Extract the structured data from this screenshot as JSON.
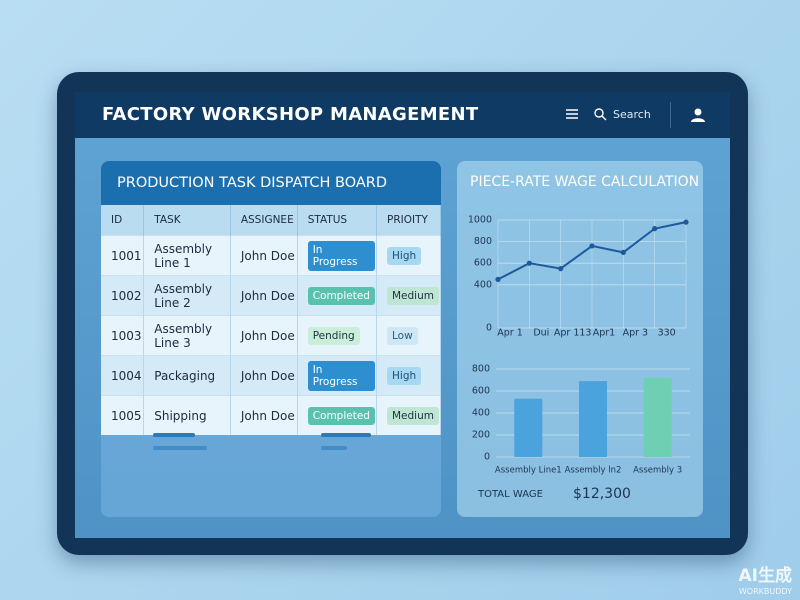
{
  "header": {
    "title": "FACTORY WORKSHOP MANAGEMENT",
    "search": "Search"
  },
  "table": {
    "title": "PRODUCTION TASK DISPATCH BOARD",
    "columns": [
      "ID",
      "TASK",
      "ASSIGNEE",
      "STATUS",
      "PRIOITY"
    ],
    "rows": [
      [
        "1001",
        "Assembly Line 1",
        "John Doe",
        "In Progress",
        "High"
      ],
      [
        "1002",
        "Assembly Line 2",
        "John Doe",
        "Completed",
        "Medium"
      ],
      [
        "1003",
        "Assembly Line 3",
        "John Doe",
        "Pending",
        "Low"
      ],
      [
        "1004",
        "Packaging",
        "John Doe",
        "In Progress",
        "High"
      ],
      [
        "1005",
        "Shipping",
        "John Doe",
        "Completed",
        "Medium"
      ]
    ]
  },
  "wage_panel": {
    "title": "PIECE-RATE WAGE CALCULATION",
    "total_label": "TOTAL WAGE",
    "total_value": "$12,300"
  },
  "chart_data": [
    {
      "type": "line",
      "categories": [
        "Apr 1",
        "Dui",
        "Apr 113",
        "Apr1",
        "Apr 3",
        "330",
        null
      ],
      "values": [
        450,
        600,
        550,
        760,
        700,
        920,
        980
      ],
      "color": "#1d5a9c",
      "ylim": [
        0,
        1000
      ],
      "yticks": [
        0,
        400,
        600,
        800,
        1000
      ],
      "grid": true
    },
    {
      "type": "bar",
      "categories": [
        "Assembly Line1",
        "Assembly ln2",
        "Assembly 3"
      ],
      "values": [
        530,
        690,
        720
      ],
      "colors": [
        "#4aa3dc",
        "#4aa3dc",
        "#6fcfb2"
      ],
      "ylim": [
        0,
        800
      ],
      "yticks": [
        0,
        200,
        400,
        600,
        800
      ],
      "grid": true
    }
  ],
  "watermark": {
    "main": "AI生成",
    "sub": "WORKBUDDY"
  }
}
